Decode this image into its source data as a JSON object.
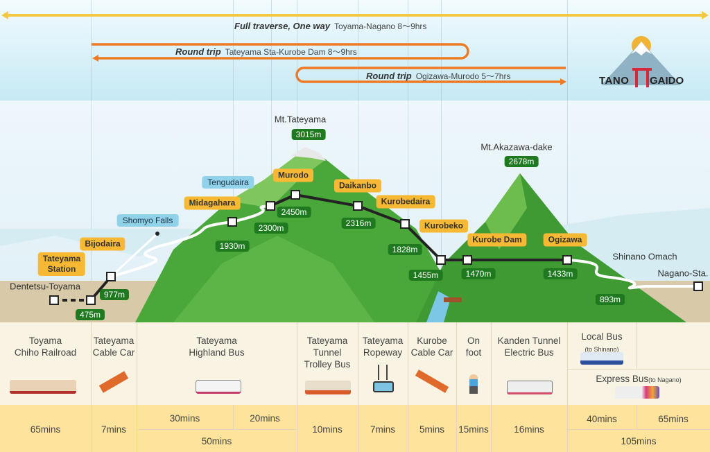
{
  "routes": [
    {
      "bold": "Full traverse, One way",
      "text": "Toyama-Nagano 8〜9hrs",
      "color": "#f5c842"
    },
    {
      "bold": "Round trip",
      "text": "Tateyama Sta-Kurobe Dam 8〜9hrs",
      "color": "#ef7a22"
    },
    {
      "bold": "Round trip",
      "text": "Ogizawa-Murodo 5〜7hrs",
      "color": "#ef7a22"
    }
  ],
  "logo": {
    "left": "TANO",
    "right": "GAIDO"
  },
  "peaks": [
    {
      "name": "Mt.Tateyama",
      "elevation": "3015m"
    },
    {
      "name": "Mt.Akazawa-dake",
      "elevation": "2678m"
    }
  ],
  "stations": {
    "dentetsu_toyama": "Dentetsu-Toyama",
    "tateyama_station": "Tateyama\nStation",
    "bijodaira": "Bijodaira",
    "shomyo_falls": "Shomyo Falls",
    "midagahara": "Midagahara",
    "tengudaira": "Tengudaira",
    "murodo": "Murodo",
    "daikanbo": "Daikanbo",
    "kurobedaira": "Kurobedaira",
    "kurobeko": "Kurobeko",
    "kurobe_dam": "Kurobe Dam",
    "ogizawa": "Ogizawa",
    "shinano_omachi": "Shinano Omach",
    "nagano": "Nagano-Sta."
  },
  "elevations": {
    "tateyama": "475m",
    "bijodaira": "977m",
    "midagahara": "1930m",
    "tengudaira": "2300m",
    "murodo": "2450m",
    "daikanbo": "2316m",
    "kurobedaira": "1828m",
    "kurobeko": "1455m",
    "kurobe_dam": "1470m",
    "ogizawa": "1433m",
    "shinano_omachi": "893m"
  },
  "transport": [
    {
      "name": "Toyama\nChiho Railroad",
      "time": "65mins"
    },
    {
      "name": "Tateyama\nCable Car",
      "time": "7mins"
    },
    {
      "name": "Tateyama\nHighland Bus",
      "time": "50mins",
      "splits": [
        "30mins",
        "20mins"
      ]
    },
    {
      "name": "Tateyama\nTunnel\nTrolley Bus",
      "time": "10mins"
    },
    {
      "name": "Tateyama\nRopeway",
      "time": "7mins"
    },
    {
      "name": "Kurobe\nCable Car",
      "time": "5mins"
    },
    {
      "name": "On\nfoot",
      "time": "15mins"
    },
    {
      "name": "Kanden Tunnel\nElectric Bus",
      "time": "16mins"
    },
    {
      "name": "Local Bus",
      "sub": "(to Shinano)",
      "name2": "Express Bus",
      "sub2": "(to Nagano)",
      "time": "105mins",
      "splits": [
        "40mins",
        "65mins"
      ]
    }
  ]
}
